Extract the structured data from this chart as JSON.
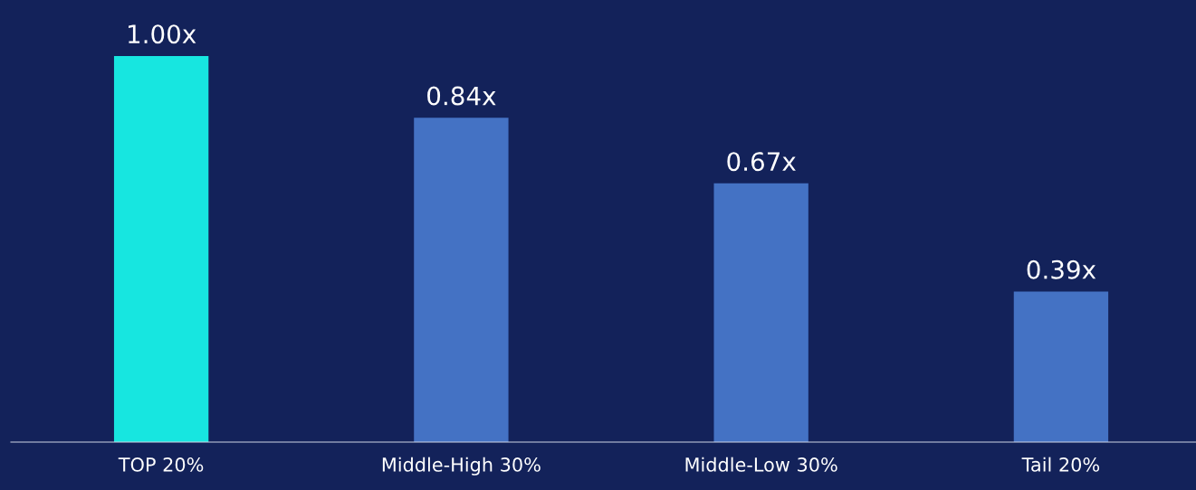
{
  "chart_data": {
    "type": "bar",
    "categories": [
      "TOP 20%",
      "Middle-High 30%",
      "Middle-Low 30%",
      "Tail 20%"
    ],
    "values": [
      1.0,
      0.84,
      0.67,
      0.39
    ],
    "value_labels": [
      "1.00x",
      "0.84x",
      "0.67x",
      "0.39x"
    ],
    "colors": [
      "#17e6e0",
      "#4472c4",
      "#4472c4",
      "#4472c4"
    ],
    "grid": false,
    "legend": false
  }
}
